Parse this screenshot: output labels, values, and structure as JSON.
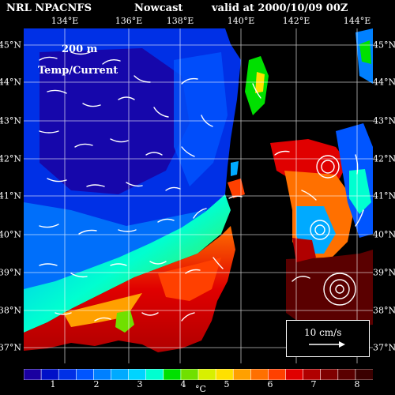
{
  "header": {
    "source": "NRL NPACNFS",
    "product": "Nowcast",
    "valid": "valid at 2000/10/09 00Z"
  },
  "overlay": {
    "depth": "200 m",
    "variables": "Temp/Current"
  },
  "axes": {
    "lon_labels": [
      "134°E",
      "136°E",
      "138°E",
      "140°E",
      "142°E",
      "144°E"
    ],
    "lat_labels": [
      "45°N",
      "44°N",
      "43°N",
      "42°N",
      "41°N",
      "40°N",
      "39°N",
      "38°N",
      "37°N"
    ]
  },
  "colorbar": {
    "ticks": [
      "1",
      "2",
      "3",
      "4",
      "5",
      "6",
      "7",
      "8"
    ],
    "unit": "°C",
    "colors": [
      "#1a00a0",
      "#0010c8",
      "#0030e6",
      "#0055ff",
      "#0080ff",
      "#00aaff",
      "#00d4ff",
      "#00ffd0",
      "#00e000",
      "#70e000",
      "#d8f000",
      "#ffe000",
      "#ffa000",
      "#ff7000",
      "#ff4000",
      "#e00000",
      "#b00000",
      "#800000",
      "#5a0000",
      "#3a0000"
    ]
  },
  "scale": {
    "label": "10 cm/s"
  },
  "colors": {
    "land": "#000000",
    "arrow": "#ffffff"
  }
}
